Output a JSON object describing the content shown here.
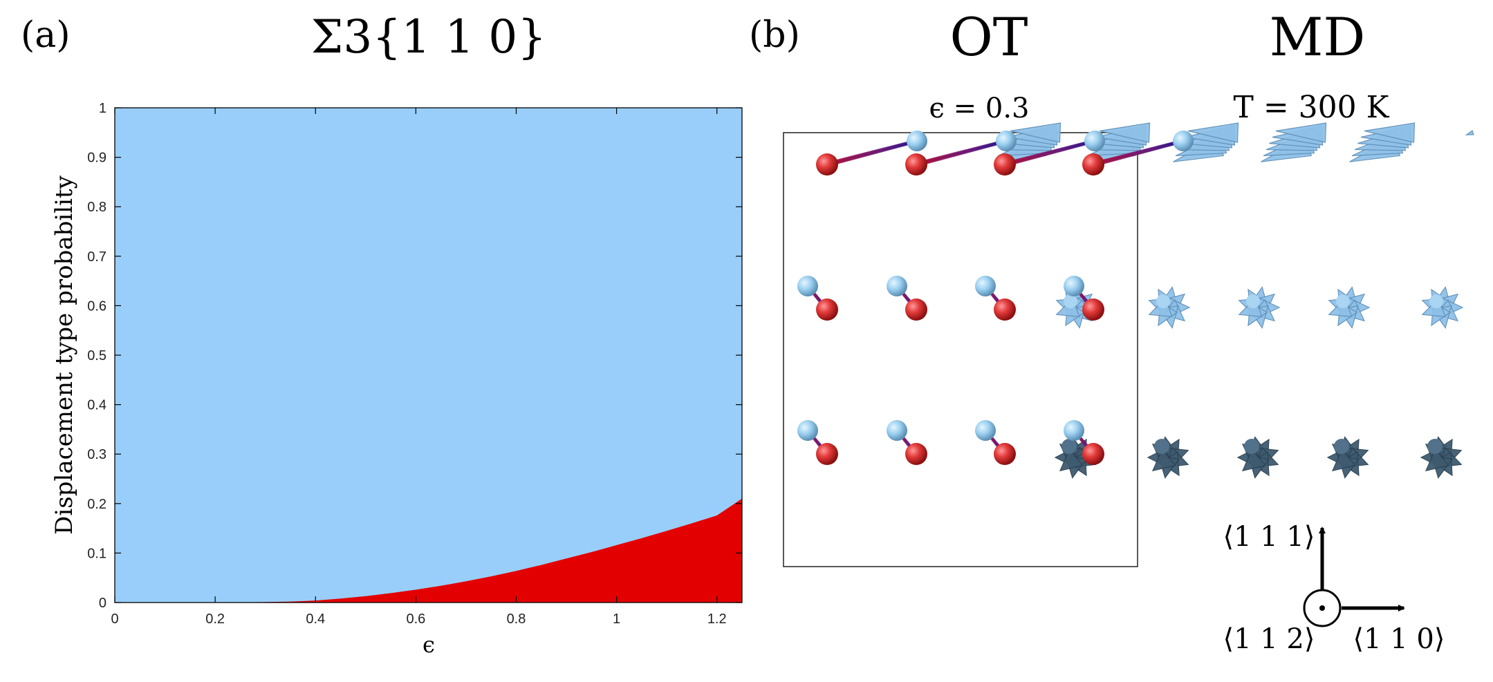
{
  "panel_a": {
    "label": "(a)",
    "title": "Σ3{1 1 0}"
  },
  "panel_b": {
    "label": "(b)",
    "col_ot": "OT",
    "col_md": "MD",
    "sub_ot": "ϵ = 0.3",
    "sub_md": "T = 300 K",
    "axes": {
      "up": "⟨1 1 1⟩",
      "out": "⟨1 1 2⟩",
      "right": "⟨1 1 0⟩"
    }
  },
  "colors": {
    "upper_region": "#99cefa",
    "lower_region": "#e30000",
    "atom_red": "#e23a3a",
    "atom_blue": "#9cd0f0",
    "arrow_blue": "#8fc1e8",
    "arrow_dark": "#3f5b70"
  },
  "chart_data": {
    "type": "area",
    "xlabel": "ϵ",
    "ylabel": "Displacement type probability",
    "xlim": [
      0,
      1.25
    ],
    "ylim": [
      0,
      1
    ],
    "xticks": [
      0,
      0.2,
      0.4,
      0.6,
      0.8,
      1,
      1.2
    ],
    "xtick_labels": [
      "0",
      "0.2",
      "0.4",
      "0.6",
      "0.8",
      "1",
      "1.2"
    ],
    "yticks": [
      0,
      0.1,
      0.2,
      0.3,
      0.4,
      0.5,
      0.6,
      0.7,
      0.8,
      0.9,
      1
    ],
    "ytick_labels": [
      "0",
      "0.1",
      "0.2",
      "0.3",
      "0.4",
      "0.5",
      "0.6",
      "0.7",
      "0.8",
      "0.9",
      "1"
    ],
    "grid": false,
    "x": [
      0,
      0.1,
      0.2,
      0.3,
      0.35,
      0.4,
      0.45,
      0.5,
      0.55,
      0.6,
      0.65,
      0.7,
      0.75,
      0.8,
      0.85,
      0.9,
      0.95,
      1.0,
      1.05,
      1.1,
      1.15,
      1.2,
      1.25
    ],
    "lower_values": [
      0,
      0,
      0,
      0.001,
      0.002,
      0.004,
      0.008,
      0.013,
      0.019,
      0.026,
      0.034,
      0.043,
      0.053,
      0.064,
      0.076,
      0.089,
      0.102,
      0.116,
      0.13,
      0.145,
      0.16,
      0.176,
      0.21
    ]
  }
}
